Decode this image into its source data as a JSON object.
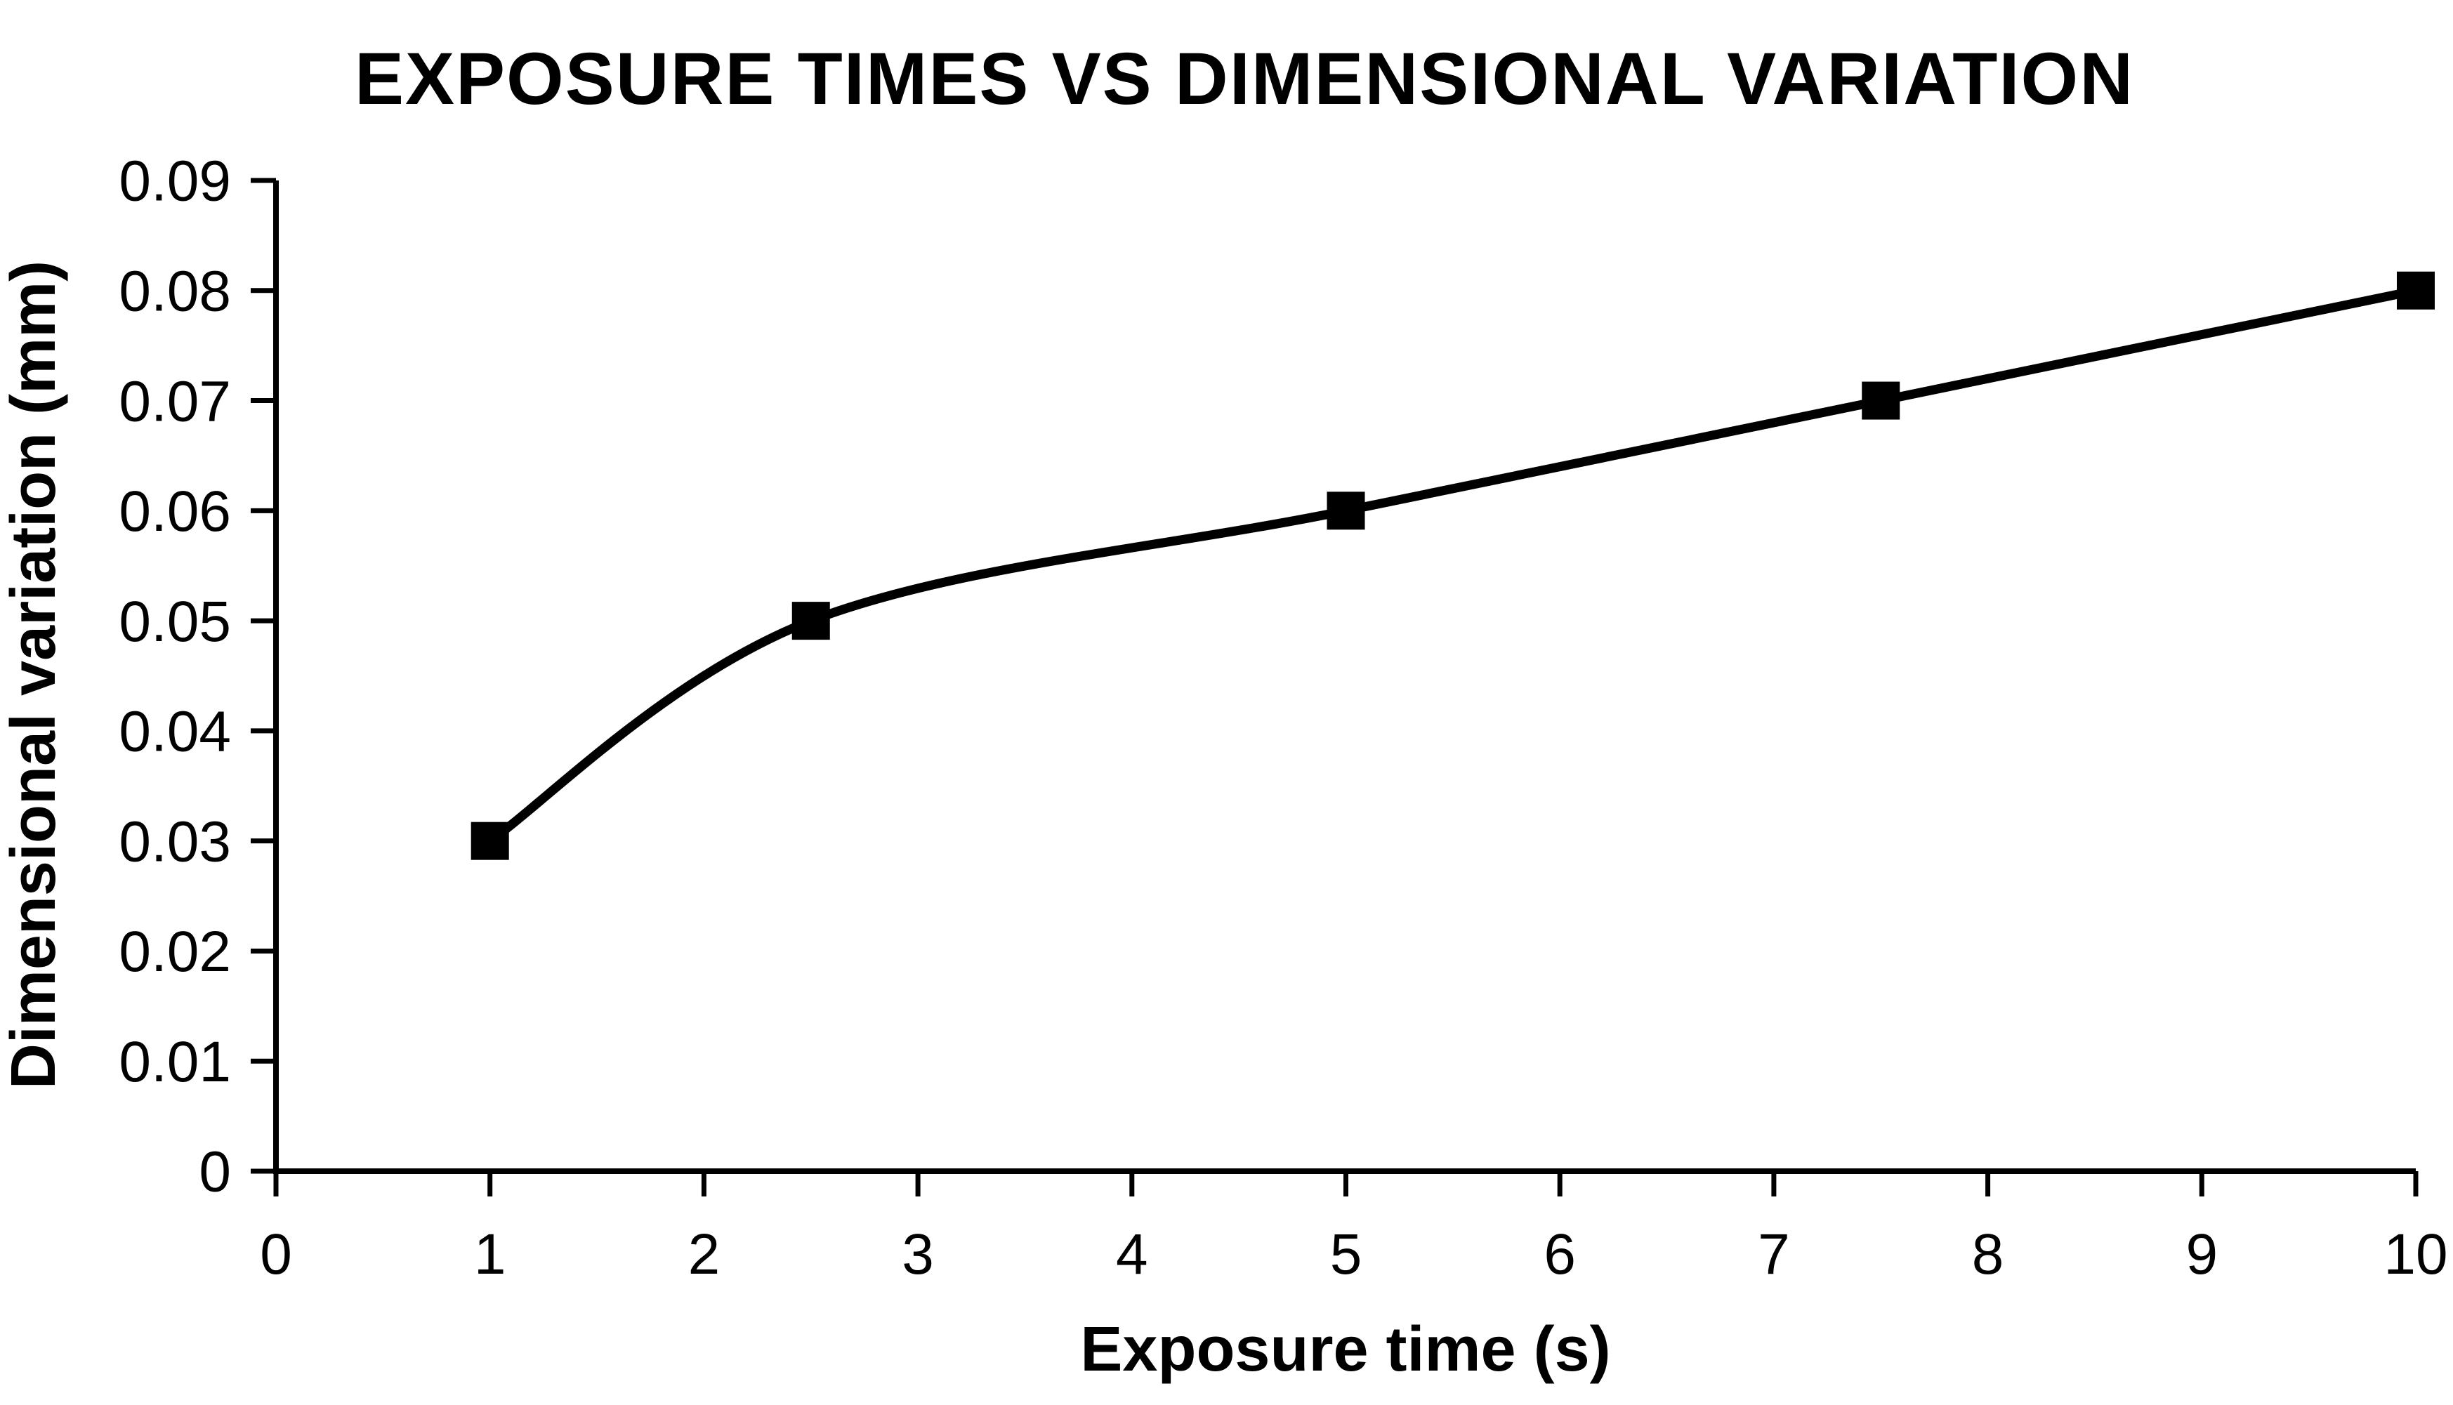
{
  "chart_data": {
    "type": "line",
    "title": "EXPOSURE TIMES VS DIMENSIONAL VARIATION",
    "xlabel": "Exposure time (s)",
    "ylabel": "Dimensional variation (mm)",
    "x": [
      1,
      2.5,
      5,
      7.5,
      10
    ],
    "y": [
      0.03,
      0.05,
      0.06,
      0.07,
      0.08
    ],
    "xlim": [
      0,
      10
    ],
    "ylim": [
      0,
      0.09
    ],
    "x_ticks": [
      0,
      1,
      2,
      3,
      4,
      5,
      6,
      7,
      8,
      9,
      10
    ],
    "x_tick_labels": [
      "0",
      "1",
      "2",
      "3",
      "4",
      "5",
      "6",
      "7",
      "8",
      "9",
      "10"
    ],
    "y_ticks": [
      0,
      0.01,
      0.02,
      0.03,
      0.04,
      0.05,
      0.06,
      0.07,
      0.08,
      0.09
    ],
    "y_tick_labels": [
      "0",
      "0.01",
      "0.02",
      "0.03",
      "0.04",
      "0.05",
      "0.06",
      "0.07",
      "0.08",
      "0.09"
    ],
    "grid": "off",
    "legend_position": "none",
    "line_style": "smooth",
    "marker": "square",
    "line_color": "#000000",
    "marker_color": "#000000",
    "axis_color": "#000000",
    "background_color": "#ffffff"
  }
}
